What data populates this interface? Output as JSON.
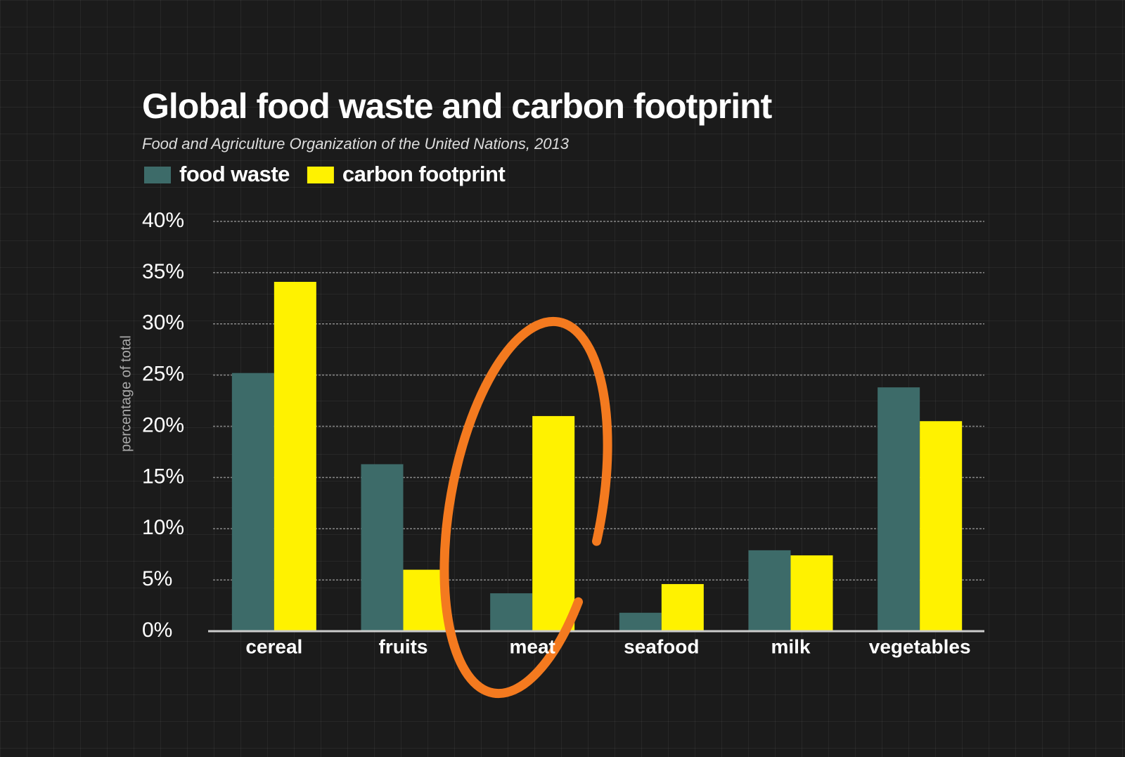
{
  "chart_data": {
    "type": "bar",
    "title": "Global food waste and carbon footprint",
    "subtitle": "Food and Agriculture Organization of the United Nations, 2013",
    "y_label": "percentage of total",
    "categories": [
      "cereal",
      "fruits",
      "meat",
      "seafood",
      "milk",
      "vegetables"
    ],
    "series": [
      {
        "name": "food waste",
        "color": "#3d6b69",
        "values": [
          25.2,
          16.3,
          3.7,
          1.8,
          7.9,
          23.8
        ]
      },
      {
        "name": "carbon footprint",
        "color": "#fff200",
        "values": [
          34.1,
          6.0,
          21.0,
          4.6,
          7.4,
          20.5
        ]
      }
    ],
    "ylim": [
      0,
      40
    ],
    "yticks": [
      {
        "value": 0,
        "label": "0%"
      },
      {
        "value": 5,
        "label": "5%"
      },
      {
        "value": 10,
        "label": "10%"
      },
      {
        "value": 15,
        "label": "15%"
      },
      {
        "value": 20,
        "label": "20%"
      },
      {
        "value": 25,
        "label": "25%"
      },
      {
        "value": 30,
        "label": "30%"
      },
      {
        "value": 35,
        "label": "35%"
      },
      {
        "value": 40,
        "label": "40%"
      }
    ],
    "grid": true
  }
}
